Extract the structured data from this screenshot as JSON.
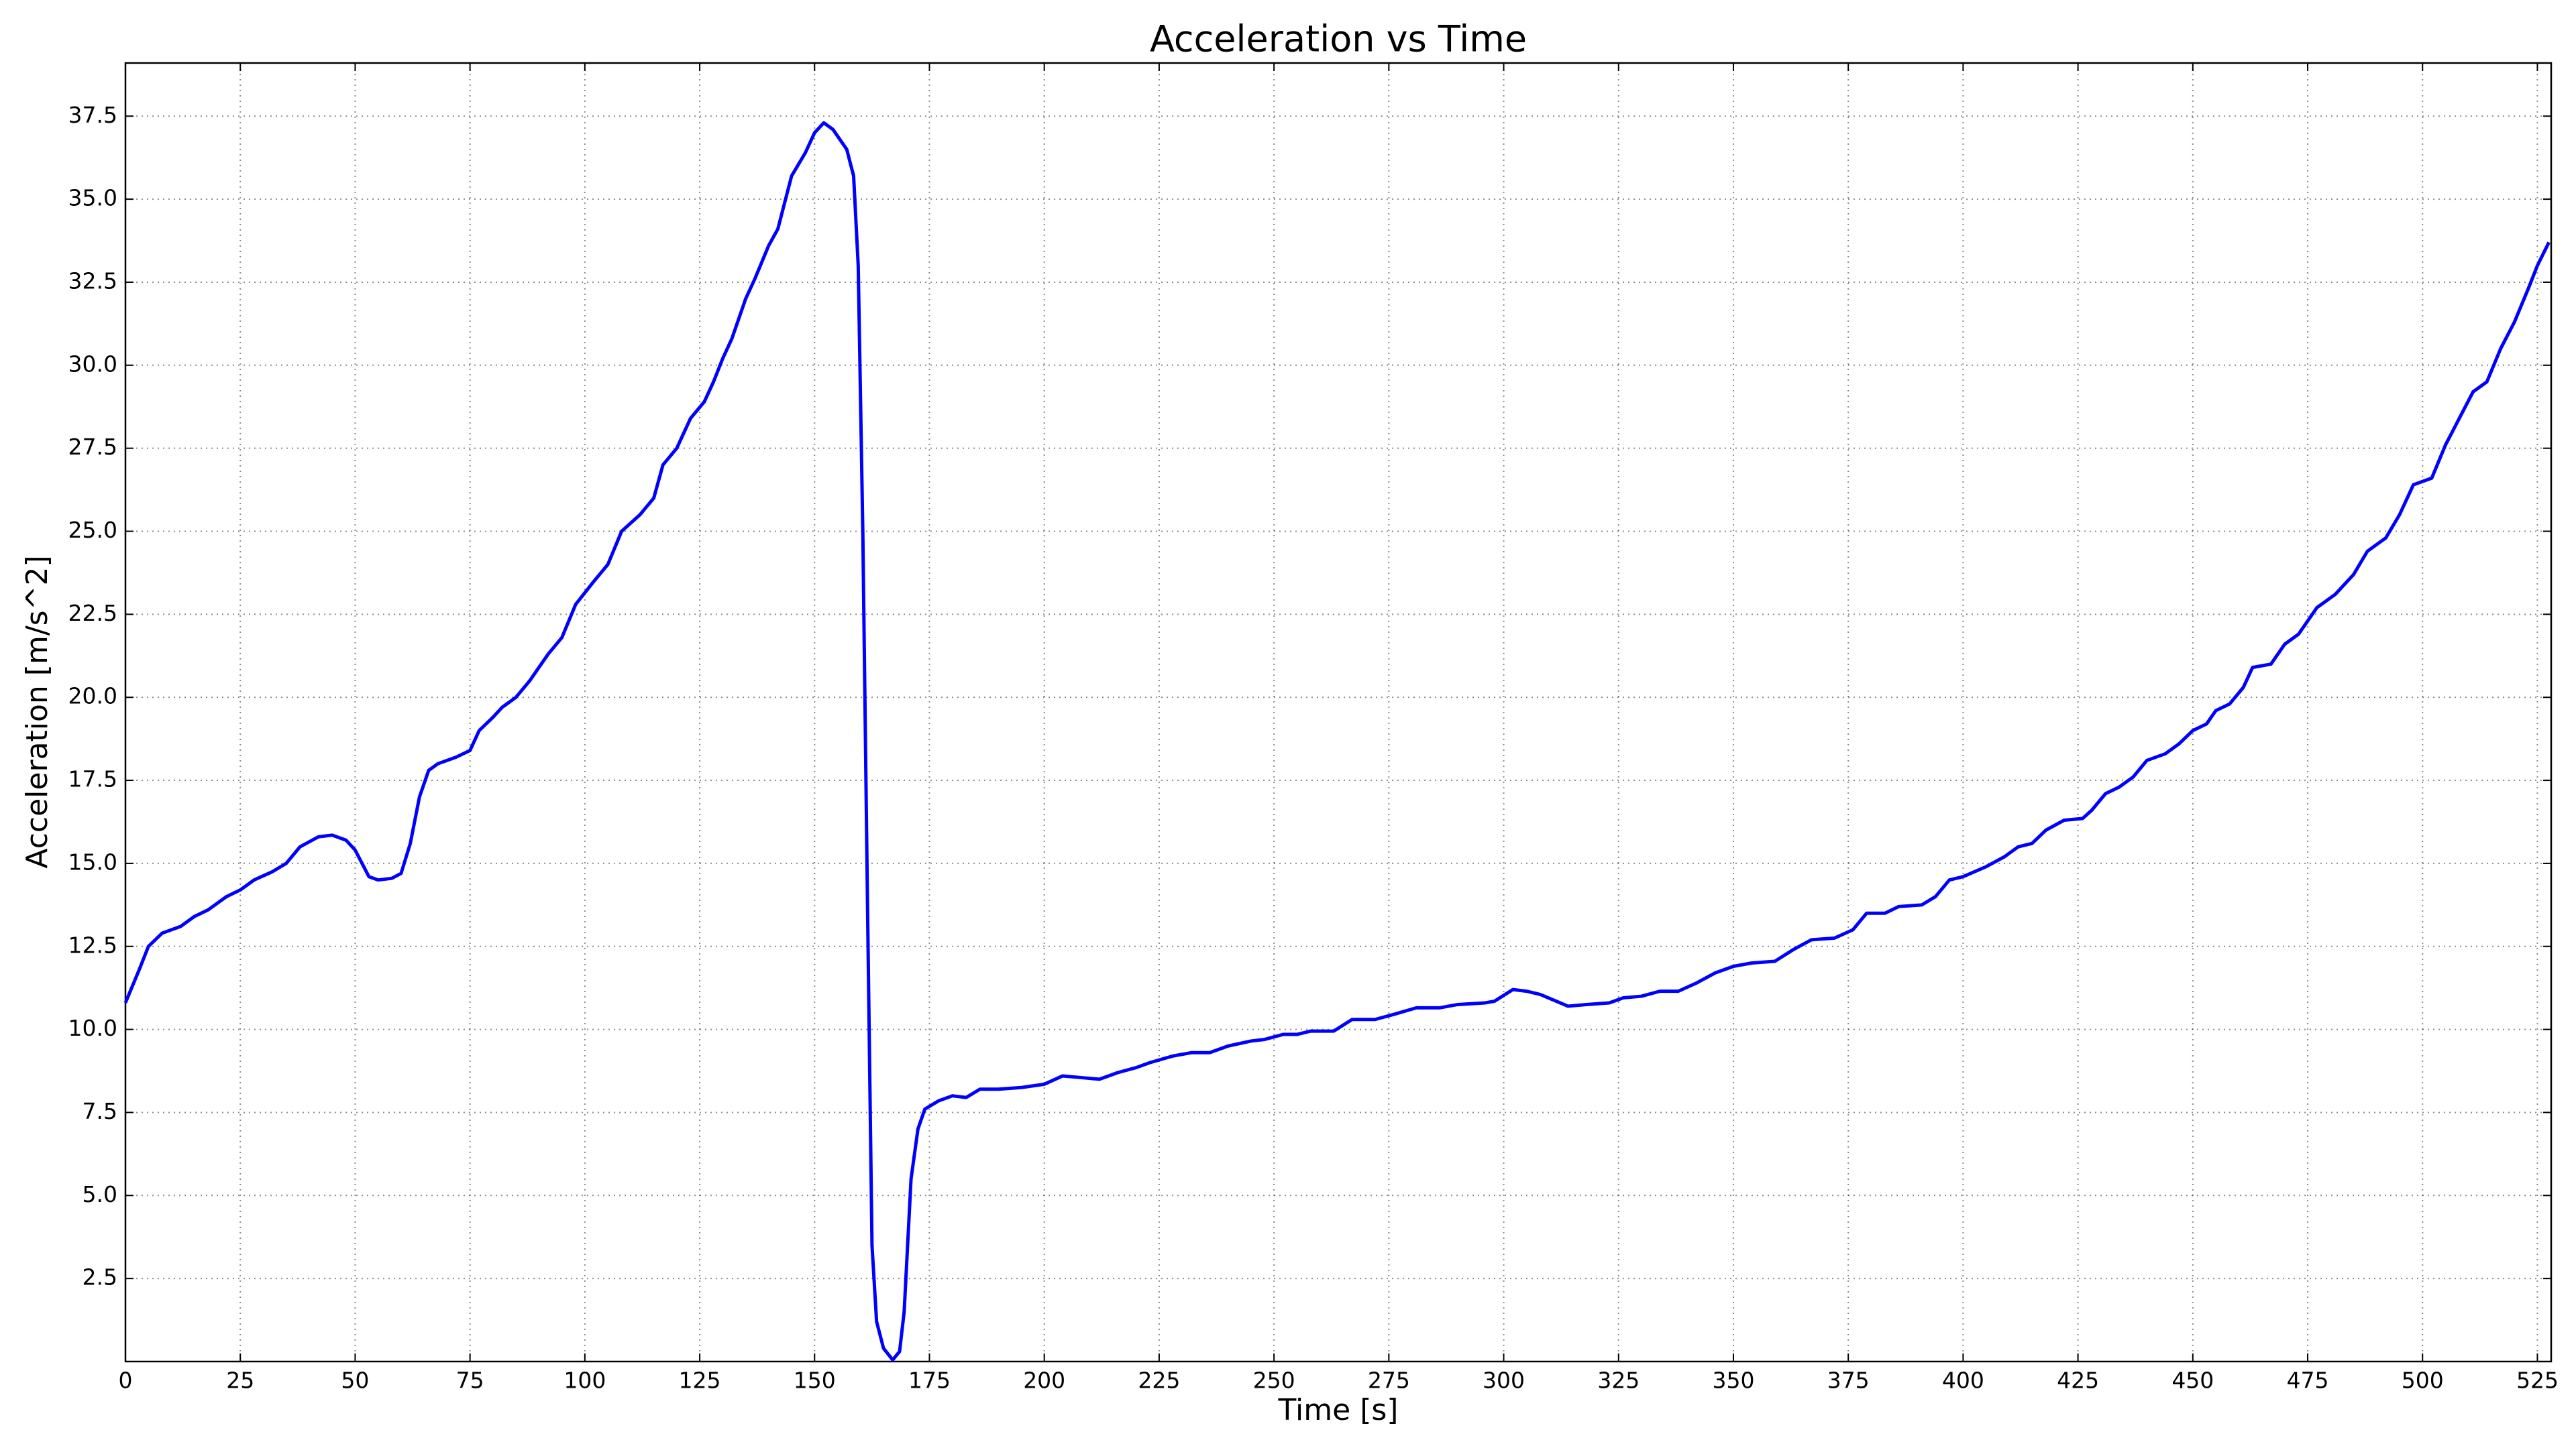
{
  "chart_data": {
    "type": "line",
    "title": "Acceleration vs Time",
    "x_label": "Time [s]",
    "y_label": "Acceleration [m/s^2]",
    "xlim": [
      0,
      528
    ],
    "ylim": [
      0,
      39.1
    ],
    "xticks": [
      0,
      25,
      50,
      75,
      100,
      125,
      150,
      175,
      200,
      225,
      250,
      275,
      300,
      325,
      350,
      375,
      400,
      425,
      450,
      475,
      500,
      525
    ],
    "yticks": [
      2.5,
      {
        "value": 5,
        "label": "5.0"
      },
      7.5,
      {
        "value": 10,
        "label": "10.0"
      },
      12.5,
      {
        "value": 15,
        "label": "15.0"
      },
      17.5,
      {
        "value": 20,
        "label": "20.0"
      },
      22.5,
      {
        "value": 25,
        "label": "25.0"
      },
      27.5,
      {
        "value": 30,
        "label": "30.0"
      },
      32.5,
      {
        "value": 35,
        "label": "35.0"
      },
      37.5
    ],
    "grid": true,
    "x": [
      0,
      3,
      5,
      8,
      12,
      15,
      18,
      22,
      25,
      28,
      32,
      35,
      38,
      42,
      45,
      48,
      50,
      53,
      55,
      58,
      60,
      62,
      64,
      66,
      68,
      72,
      75,
      77,
      80,
      82,
      85,
      88,
      92,
      95,
      98,
      102,
      105,
      108,
      112,
      115,
      117,
      120,
      123,
      126,
      128,
      130,
      132,
      135,
      137,
      140,
      142,
      145,
      148,
      150,
      152,
      154,
      157,
      158.5,
      159.5,
      160.5,
      161.5,
      162.5,
      163.5,
      165,
      167,
      168.5,
      169.5,
      171,
      172.5,
      174,
      177,
      180,
      183,
      186,
      190,
      195,
      200,
      204,
      208,
      212,
      216,
      220,
      223,
      228,
      232,
      236,
      240,
      245,
      248,
      252,
      255,
      258,
      263,
      267,
      272,
      276,
      281,
      286,
      290,
      296,
      298,
      302,
      305,
      308,
      314,
      318,
      323,
      326,
      330,
      334,
      338,
      342,
      346,
      350,
      354,
      359,
      363,
      367,
      372,
      376,
      379,
      383,
      386,
      391,
      394,
      397,
      400,
      405,
      409,
      412,
      415,
      418,
      422,
      426,
      428,
      431,
      434,
      437,
      440,
      444,
      447,
      450,
      453,
      455,
      458,
      461,
      463,
      467,
      470,
      473,
      477,
      481,
      485,
      488,
      492,
      495,
      498,
      502,
      505,
      508,
      511,
      514,
      517,
      520,
      523,
      525,
      527.5
    ],
    "series": [
      {
        "color": "#0000ff",
        "values": [
          10.8,
          11.8,
          12.5,
          12.9,
          13.1,
          13.4,
          13.6,
          14.0,
          14.2,
          14.5,
          14.75,
          15.0,
          15.5,
          15.8,
          15.85,
          15.7,
          15.4,
          14.6,
          14.5,
          14.55,
          14.7,
          15.6,
          17.0,
          17.8,
          18.0,
          18.2,
          18.4,
          19.0,
          19.4,
          19.7,
          20.0,
          20.5,
          21.3,
          21.8,
          22.8,
          23.5,
          24.0,
          25.0,
          25.5,
          26.0,
          27.0,
          27.5,
          28.4,
          28.9,
          29.5,
          30.2,
          30.8,
          32.0,
          32.6,
          33.6,
          34.1,
          35.7,
          36.4,
          37.0,
          37.3,
          37.1,
          36.5,
          35.7,
          33.0,
          25.0,
          14.0,
          3.5,
          1.2,
          0.4,
          0.05,
          0.3,
          1.5,
          5.5,
          7.0,
          7.6,
          7.85,
          8.0,
          7.95,
          8.2,
          8.2,
          8.25,
          8.35,
          8.6,
          8.55,
          8.5,
          8.7,
          8.85,
          9.0,
          9.2,
          9.3,
          9.3,
          9.5,
          9.65,
          9.7,
          9.85,
          9.85,
          9.95,
          9.95,
          10.3,
          10.3,
          10.45,
          10.65,
          10.65,
          10.75,
          10.8,
          10.85,
          11.2,
          11.15,
          11.05,
          10.7,
          10.75,
          10.8,
          10.95,
          11.0,
          11.15,
          11.15,
          11.4,
          11.7,
          11.9,
          12.0,
          12.05,
          12.4,
          12.7,
          12.75,
          13.0,
          13.5,
          13.5,
          13.7,
          13.75,
          14.0,
          14.5,
          14.6,
          14.9,
          15.2,
          15.5,
          15.6,
          16.0,
          16.3,
          16.35,
          16.6,
          17.1,
          17.3,
          17.6,
          18.1,
          18.3,
          18.6,
          19.0,
          19.2,
          19.6,
          19.8,
          20.3,
          20.9,
          21.0,
          21.6,
          21.9,
          22.7,
          23.1,
          23.7,
          24.4,
          24.8,
          25.5,
          26.4,
          26.6,
          27.6,
          28.4,
          29.2,
          29.5,
          30.5,
          31.3,
          32.3,
          33.0,
          33.7
        ]
      }
    ]
  }
}
